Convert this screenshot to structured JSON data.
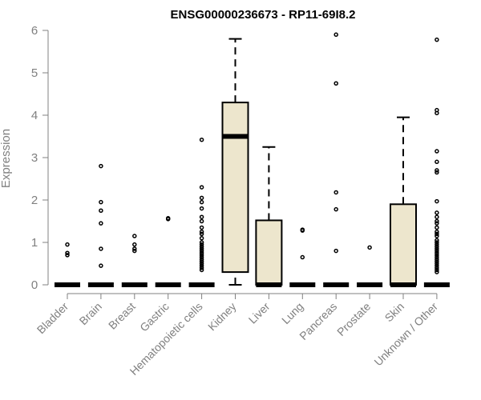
{
  "chart_data": {
    "type": "boxplot",
    "title": "ENSG00000236673 - RP11-69I8.2",
    "ylabel": "Expression",
    "xlabel": "",
    "ylim": [
      0,
      6
    ],
    "yticks": [
      0,
      1,
      2,
      3,
      4,
      5,
      6
    ],
    "colors": {
      "box_fill": "#ede6cd",
      "axis": "#808080",
      "stroke": "#000000"
    },
    "categories": [
      "Bladder",
      "Brain",
      "Breast",
      "Gastric",
      "Hematopoietic cells",
      "Kidney",
      "Liver",
      "Lung",
      "Pancreas",
      "Prostate",
      "Skin",
      "Unknown / Other"
    ],
    "boxes": [
      {
        "min": 0,
        "q1": 0,
        "median": 0,
        "q3": 0,
        "max": 0
      },
      {
        "min": 0,
        "q1": 0,
        "median": 0,
        "q3": 0,
        "max": 0
      },
      {
        "min": 0,
        "q1": 0,
        "median": 0,
        "q3": 0,
        "max": 0
      },
      {
        "min": 0,
        "q1": 0,
        "median": 0,
        "q3": 0,
        "max": 0
      },
      {
        "min": 0,
        "q1": 0,
        "median": 0,
        "q3": 0,
        "max": 0
      },
      {
        "min": 0,
        "q1": 0.3,
        "median": 3.5,
        "q3": 4.3,
        "max": 5.8
      },
      {
        "min": 0,
        "q1": 0,
        "median": 0,
        "q3": 1.52,
        "max": 3.25
      },
      {
        "min": 0,
        "q1": 0,
        "median": 0,
        "q3": 0,
        "max": 0
      },
      {
        "min": 0,
        "q1": 0,
        "median": 0,
        "q3": 0,
        "max": 0
      },
      {
        "min": 0,
        "q1": 0,
        "median": 0,
        "q3": 0,
        "max": 0
      },
      {
        "min": 0,
        "q1": 0,
        "median": 0,
        "q3": 1.9,
        "max": 3.95
      },
      {
        "min": 0,
        "q1": 0,
        "median": 0,
        "q3": 0,
        "max": 0
      }
    ],
    "outliers": [
      [
        0.95,
        0.75,
        0.7
      ],
      [
        2.8,
        1.95,
        1.75,
        1.45,
        0.85,
        0.45
      ],
      [
        1.15,
        0.95,
        0.85,
        0.8
      ],
      [
        1.57,
        1.55
      ],
      [
        3.42,
        2.3,
        2.05,
        1.95,
        1.8,
        1.6,
        1.5,
        1.35,
        1.25,
        1.2,
        1.1,
        1.0,
        0.95,
        0.9,
        0.85,
        0.8,
        0.75,
        0.7,
        0.65,
        0.6,
        0.55,
        0.5,
        0.45,
        0.4,
        0.35
      ],
      [],
      [],
      [
        1.3,
        1.28,
        0.65
      ],
      [
        5.9,
        4.75,
        2.18,
        1.78,
        0.8
      ],
      [
        0.88
      ],
      [],
      [
        5.78,
        4.12,
        4.05,
        3.15,
        2.9,
        2.7,
        2.65,
        1.97,
        1.7,
        1.6,
        1.5,
        1.45,
        1.35,
        1.25,
        1.2,
        1.15,
        1.05,
        1.0,
        0.95,
        0.9,
        0.85,
        0.8,
        0.75,
        0.7,
        0.65,
        0.6,
        0.55,
        0.5,
        0.45,
        0.4,
        0.35,
        0.3
      ]
    ]
  }
}
